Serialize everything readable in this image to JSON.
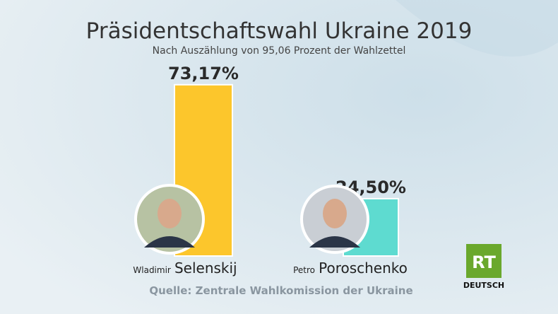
{
  "chart_data": {
    "type": "bar",
    "title": "Präsidentschaftswahl Ukraine 2019",
    "subtitle": "Nach Auszählung von 95,06 Prozent der Wahlzettel",
    "first_names": [
      "Wladimir",
      "Petro"
    ],
    "categories": [
      "Selenskij",
      "Poroschenko"
    ],
    "values": [
      73.17,
      24.5
    ],
    "value_labels": [
      "73,17%",
      "24,50%"
    ],
    "colors": [
      "#fcc62c",
      "#5edbd0"
    ],
    "source": "Quelle: Zentrale Wahlkomission der Ukraine",
    "logo": {
      "mark": "RT",
      "label": "DEUTSCH"
    }
  }
}
